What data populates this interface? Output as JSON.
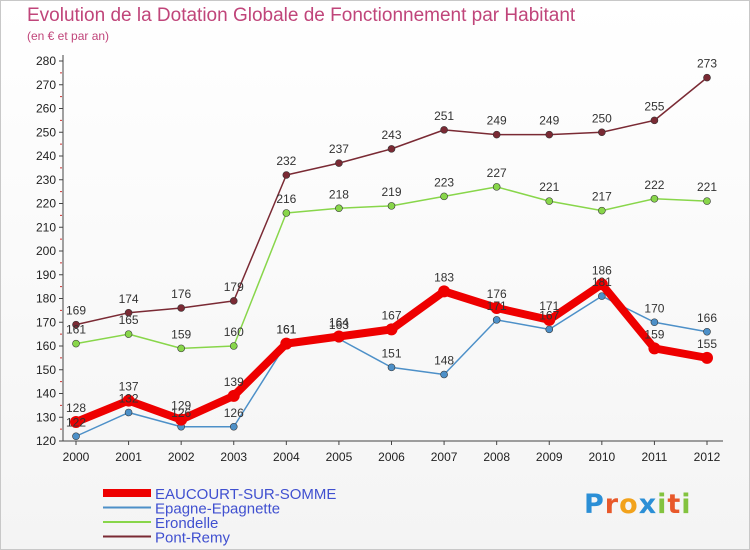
{
  "chart_data": {
    "type": "line",
    "title": "Evolution de la Dotation Globale de Fonctionnement par Habitant",
    "subtitle": "(en € et par an)",
    "xlabel": "",
    "ylabel": "",
    "categories": [
      "2000",
      "2001",
      "2002",
      "2003",
      "2004",
      "2005",
      "2006",
      "2007",
      "2008",
      "2009",
      "2010",
      "2011",
      "2012"
    ],
    "ylim": [
      120,
      280
    ],
    "yticks": [
      120,
      130,
      140,
      150,
      160,
      170,
      180,
      190,
      200,
      210,
      220,
      230,
      240,
      250,
      260,
      270,
      280
    ],
    "grid": false,
    "legend_position": "bottom-left",
    "series": [
      {
        "name": "EAUCOURT-SUR-SOMME",
        "color": "#ee0000",
        "values": [
          128,
          137,
          129,
          139,
          161,
          164,
          167,
          183,
          176,
          171,
          186,
          159,
          155
        ],
        "labels": [
          "128",
          "137",
          "129",
          "139",
          "161",
          "164",
          "167",
          "183",
          "176",
          "171",
          "186",
          "159",
          "155"
        ]
      },
      {
        "name": "Epagne-Epagnette",
        "color": "#4d90c8",
        "values": [
          122,
          132,
          126,
          126,
          161,
          163,
          151,
          148,
          171,
          167,
          181,
          170,
          166
        ],
        "labels": [
          "122",
          "132",
          "126",
          "126",
          "161",
          "163",
          "151",
          "148",
          "171",
          "167",
          "181",
          "170",
          "166"
        ]
      },
      {
        "name": "Erondelle",
        "color": "#88d64a",
        "values": [
          161,
          165,
          159,
          160,
          216,
          218,
          219,
          223,
          227,
          221,
          217,
          222,
          221
        ],
        "labels": [
          "161",
          "165",
          "159",
          "160",
          "216",
          "218",
          "219",
          "223",
          "227",
          "221",
          "217",
          "222",
          "221"
        ]
      },
      {
        "name": "Pont-Remy",
        "color": "#7a2a34",
        "values": [
          169,
          174,
          176,
          179,
          232,
          237,
          243,
          251,
          249,
          249,
          250,
          255,
          273
        ],
        "labels": [
          "169",
          "174",
          "176",
          "179",
          "232",
          "237",
          "243",
          "251",
          "249",
          "249",
          "250",
          "255",
          "273"
        ]
      }
    ]
  },
  "brand": {
    "name": "Proxiti",
    "letters": [
      {
        "char": "P",
        "color": "#2b8fd6"
      },
      {
        "char": "r",
        "color": "#e8582a"
      },
      {
        "char": "o",
        "color": "#f2a21b"
      },
      {
        "char": "x",
        "color": "#2b8fd6"
      },
      {
        "char": "i",
        "color": "#83c33f"
      },
      {
        "char": "t",
        "color": "#e8582a"
      },
      {
        "char": "i",
        "color": "#83c33f"
      }
    ]
  }
}
